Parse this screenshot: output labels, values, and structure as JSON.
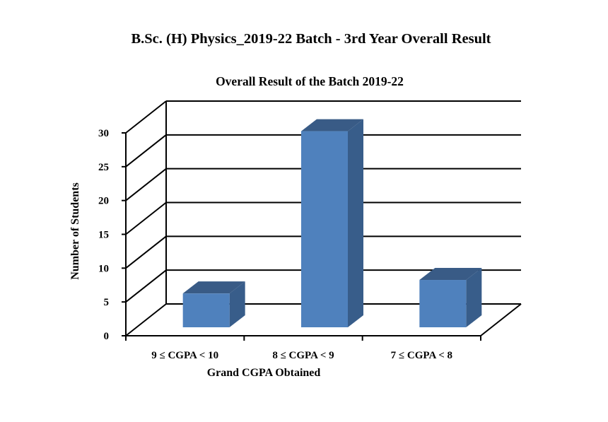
{
  "page": {
    "title": "B.Sc. (H) Physics_2019-22 Batch - 3rd Year Overall Result"
  },
  "chart_data": {
    "type": "bar",
    "title": "Overall Result of the Batch 2019-22",
    "xlabel": "Grand CGPA Obtained",
    "ylabel": "Number of Students",
    "categories": [
      "9 ≤ CGPA < 10",
      "8 ≤ CGPA < 9",
      "7 ≤ CGPA < 8"
    ],
    "values": [
      5,
      29,
      7
    ],
    "ylim": [
      0,
      30
    ],
    "yticks": [
      0,
      5,
      10,
      15,
      20,
      25,
      30
    ],
    "grid": true,
    "three_d": true,
    "legend": "none",
    "colors": {
      "bar_front": "#4f81bd",
      "bar_side": "#385d8a",
      "bar_top": "#395b86",
      "grid": "#000000"
    }
  }
}
